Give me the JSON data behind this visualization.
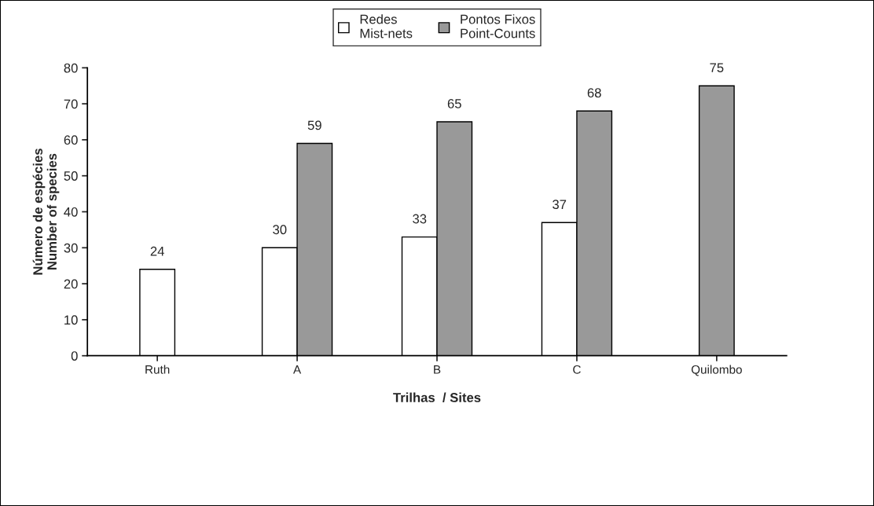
{
  "chart_data": {
    "type": "bar",
    "xlabel": "Trilhas  / Sites",
    "ylabel": "Número de espécies\nNumber of species",
    "categories": [
      "Ruth",
      "A",
      "B",
      "C",
      "Quilombo"
    ],
    "series": [
      {
        "name": "Redes\nMist-nets",
        "color": "#ffffff",
        "values": [
          24,
          30,
          33,
          37,
          null
        ]
      },
      {
        "name": "Pontos Fixos\nPoint-Counts",
        "color": "#999999",
        "values": [
          null,
          59,
          65,
          68,
          75
        ]
      }
    ],
    "ylim": [
      0,
      80
    ],
    "yticks": [
      0,
      10,
      20,
      30,
      40,
      50,
      60,
      70,
      80
    ],
    "data_labels": true,
    "grid": false,
    "legend": "top"
  }
}
